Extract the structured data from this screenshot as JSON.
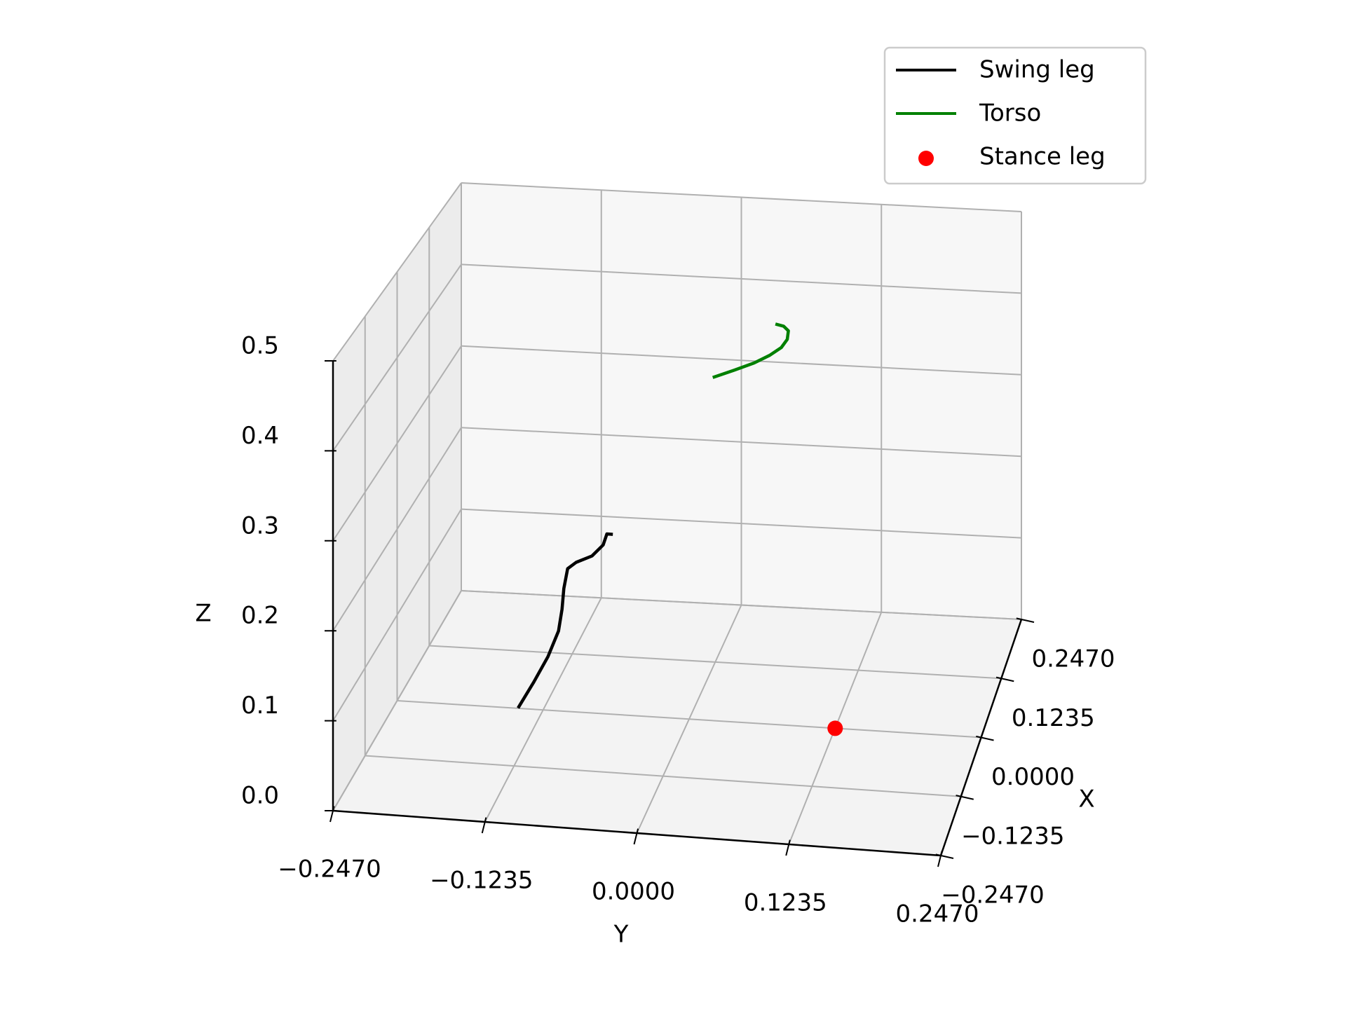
{
  "chart_data": {
    "type": "line",
    "projection": "3d",
    "title": "",
    "xlabel": "X",
    "ylabel": "Y",
    "zlabel": "Z",
    "xlim": [
      -0.247,
      0.247
    ],
    "ylim": [
      -0.247,
      0.247
    ],
    "zlim": [
      0.0,
      0.5
    ],
    "x_ticks": [
      "−0.2470",
      "−0.1235",
      "0.0000",
      "0.1235",
      "0.2470"
    ],
    "y_ticks": [
      "−0.2470",
      "−0.1235",
      "0.0000",
      "0.1235",
      "0.2470"
    ],
    "z_ticks": [
      "0.0",
      "0.1",
      "0.2",
      "0.3",
      "0.4",
      "0.5"
    ],
    "grid": true,
    "legend_position": "top-right",
    "series": [
      {
        "name": "Swing leg",
        "kind": "line",
        "color": "#000000",
        "points": [
          {
            "x": -0.15,
            "y": -0.115,
            "z": 0.08
          },
          {
            "x": -0.13,
            "y": -0.106,
            "z": 0.1
          },
          {
            "x": -0.11,
            "y": -0.098,
            "z": 0.12
          },
          {
            "x": -0.09,
            "y": -0.093,
            "z": 0.14
          },
          {
            "x": -0.08,
            "y": -0.092,
            "z": 0.16
          },
          {
            "x": -0.072,
            "y": -0.092,
            "z": 0.18
          },
          {
            "x": -0.066,
            "y": -0.09,
            "z": 0.2
          },
          {
            "x": -0.06,
            "y": -0.084,
            "z": 0.205
          },
          {
            "x": -0.053,
            "y": -0.072,
            "z": 0.21
          },
          {
            "x": -0.046,
            "y": -0.064,
            "z": 0.22
          },
          {
            "x": -0.04,
            "y": -0.062,
            "z": 0.23
          },
          {
            "x": -0.04,
            "y": -0.057,
            "z": 0.23
          }
        ]
      },
      {
        "name": "Torso",
        "kind": "line",
        "color": "#008000",
        "points": [
          {
            "x": 0.0,
            "y": 0.02,
            "z": 0.4
          },
          {
            "x": 0.0,
            "y": 0.038,
            "z": 0.41
          },
          {
            "x": 0.0,
            "y": 0.055,
            "z": 0.42
          },
          {
            "x": 0.0,
            "y": 0.068,
            "z": 0.43
          },
          {
            "x": 0.0,
            "y": 0.078,
            "z": 0.44
          },
          {
            "x": 0.0,
            "y": 0.083,
            "z": 0.45
          },
          {
            "x": 0.0,
            "y": 0.084,
            "z": 0.46
          },
          {
            "x": 0.0,
            "y": 0.08,
            "z": 0.465
          },
          {
            "x": 0.0,
            "y": 0.073,
            "z": 0.467
          }
        ]
      },
      {
        "name": "Stance leg",
        "kind": "scatter",
        "color": "#ff0000",
        "points": [
          {
            "x": 0.0,
            "y": 0.1235,
            "z": 0.0
          }
        ]
      }
    ]
  }
}
